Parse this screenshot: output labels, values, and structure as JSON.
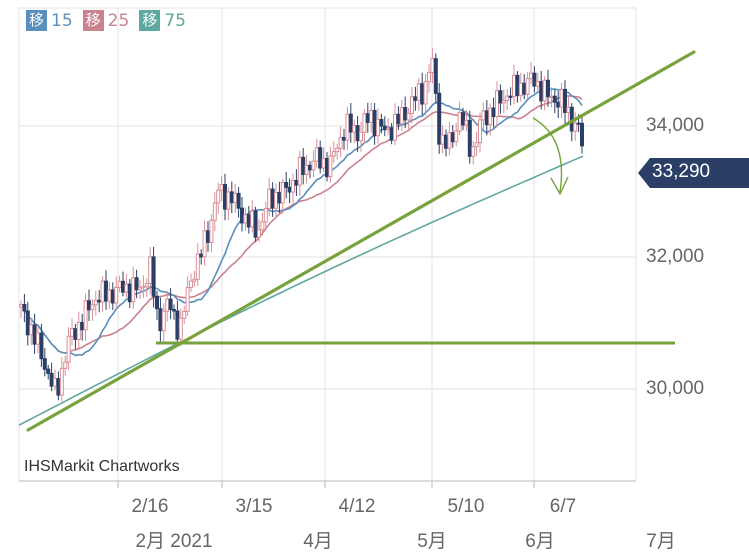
{
  "legend": [
    {
      "badge": "移",
      "period": "15",
      "color": "#5a8fbd"
    },
    {
      "badge": "移",
      "period": "25",
      "color": "#c9828e"
    },
    {
      "badge": "移",
      "period": "75",
      "color": "#5fa8a0"
    }
  ],
  "credit": "IHSMarkit Chartworks",
  "last_price": "33,290",
  "colors": {
    "up": "#d98f98",
    "down": "#2b3f66",
    "ma15": "#5a8fbd",
    "ma25": "#c9828e",
    "ma75": "#5fa8a0",
    "trendline": "#78a23b",
    "grid": "#e3e3e3",
    "tag": "#2b3f66"
  },
  "chart_data": {
    "type": "candlestick",
    "y_ticks": [
      "34,000",
      "32,000",
      "30,000"
    ],
    "y_tick_values": [
      34000,
      32000,
      30000
    ],
    "x_date_ticks": [
      "2/16",
      "3/15",
      "4/12",
      "5/10",
      "6/7"
    ],
    "x_month_ticks": [
      "2月 2021",
      "4月",
      "5月",
      "6月",
      "7月"
    ],
    "ylim": [
      28600,
      36000
    ],
    "last_value": 33290,
    "moving_averages": [
      "15",
      "25",
      "75"
    ],
    "annotations": [
      "uptrend line",
      "horizontal support line near 30,700",
      "downward arrow"
    ]
  }
}
